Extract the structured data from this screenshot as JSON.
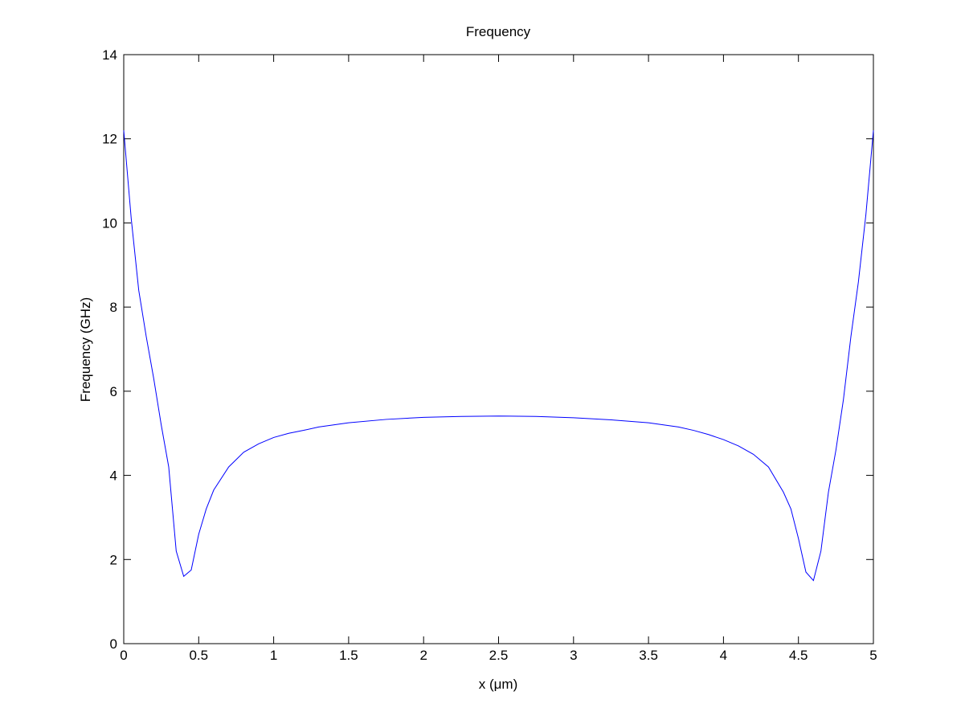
{
  "chart_data": {
    "type": "line",
    "title": "Frequency",
    "x_label": "x (μm)",
    "y_label": "Frequency (GHz)",
    "x": [
      0,
      0.05,
      0.1,
      0.15,
      0.2,
      0.25,
      0.3,
      0.35,
      0.4,
      0.45,
      0.5,
      0.55,
      0.6,
      0.7,
      0.8,
      0.9,
      1.0,
      1.1,
      1.2,
      1.3,
      1.4,
      1.5,
      1.75,
      2.0,
      2.25,
      2.5,
      2.75,
      3.0,
      3.25,
      3.5,
      3.7,
      3.8,
      3.9,
      4.0,
      4.1,
      4.2,
      4.3,
      4.4,
      4.45,
      4.5,
      4.55,
      4.6,
      4.65,
      4.7,
      4.75,
      4.8,
      4.85,
      4.9,
      4.95,
      5.0
    ],
    "values": [
      12.2,
      10.1,
      8.4,
      7.3,
      6.3,
      5.2,
      4.2,
      2.2,
      1.6,
      1.75,
      2.6,
      3.2,
      3.65,
      4.2,
      4.55,
      4.75,
      4.9,
      5.0,
      5.07,
      5.15,
      5.2,
      5.25,
      5.33,
      5.38,
      5.4,
      5.41,
      5.4,
      5.37,
      5.32,
      5.25,
      5.15,
      5.07,
      4.97,
      4.85,
      4.7,
      4.5,
      4.2,
      3.6,
      3.2,
      2.5,
      1.7,
      1.5,
      2.2,
      3.6,
      4.6,
      5.8,
      7.3,
      8.6,
      10.2,
      12.2
    ],
    "color": "#0000ff",
    "xlim": [
      0,
      5
    ],
    "xticks": [
      0,
      0.5,
      1,
      1.5,
      2,
      2.5,
      3,
      3.5,
      4,
      4.5,
      5
    ],
    "ylim": [
      0,
      14
    ],
    "yticks": [
      0,
      2,
      4,
      6,
      8,
      10,
      12,
      14
    ],
    "grid": false
  }
}
